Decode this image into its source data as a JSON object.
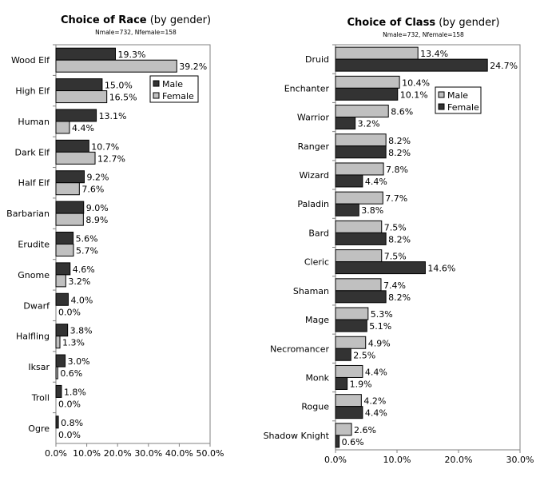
{
  "chart_data": [
    {
      "type": "bar",
      "orientation": "horizontal",
      "title": "Choice of Race",
      "title_suffix": "(by gender)",
      "subtitle": "Nmale=732, Nfemale=158",
      "categories": [
        "Wood Elf",
        "High Elf",
        "Human",
        "Dark Elf",
        "Half Elf",
        "Barbarian",
        "Erudite",
        "Gnome",
        "Dwarf",
        "Halfling",
        "Iksar",
        "Troll",
        "Ogre"
      ],
      "series": [
        {
          "name": "Male",
          "color": "#333333",
          "values": [
            19.3,
            15.0,
            13.1,
            10.7,
            9.2,
            9.0,
            5.6,
            4.6,
            4.0,
            3.8,
            3.0,
            1.8,
            0.8
          ]
        },
        {
          "name": "Female",
          "color": "#c0c0c0",
          "values": [
            39.2,
            16.5,
            4.4,
            12.7,
            7.6,
            8.9,
            5.7,
            3.2,
            0.0,
            1.3,
            0.6,
            0.0,
            0.0
          ]
        }
      ],
      "xlim": [
        0,
        50
      ],
      "xticks": [
        "0.0%",
        "10.0%",
        "20.0%",
        "30.0%",
        "40.0%",
        "50.0%"
      ],
      "legend": "top-right",
      "grid": false
    },
    {
      "type": "bar",
      "orientation": "horizontal",
      "title": "Choice of Class",
      "title_suffix": "(by gender)",
      "subtitle": "Nmale=732, Nfemale=158",
      "categories": [
        "Druid",
        "Enchanter",
        "Warrior",
        "Ranger",
        "Wizard",
        "Paladin",
        "Bard",
        "Cleric",
        "Shaman",
        "Mage",
        "Necromancer",
        "Monk",
        "Rogue",
        "Shadow Knight"
      ],
      "series": [
        {
          "name": "Male",
          "color": "#c0c0c0",
          "values": [
            13.4,
            10.4,
            8.6,
            8.2,
            7.8,
            7.7,
            7.5,
            7.5,
            7.4,
            5.3,
            4.9,
            4.4,
            4.2,
            2.6
          ]
        },
        {
          "name": "Female",
          "color": "#333333",
          "values": [
            24.7,
            10.1,
            3.2,
            8.2,
            4.4,
            3.8,
            8.2,
            14.6,
            8.2,
            5.1,
            2.5,
            1.9,
            4.4,
            0.6
          ]
        }
      ],
      "xlim": [
        0,
        30
      ],
      "xticks": [
        "0.0%",
        "10.0%",
        "20.0%",
        "30.0%"
      ],
      "legend": "top-right",
      "grid": false
    }
  ]
}
